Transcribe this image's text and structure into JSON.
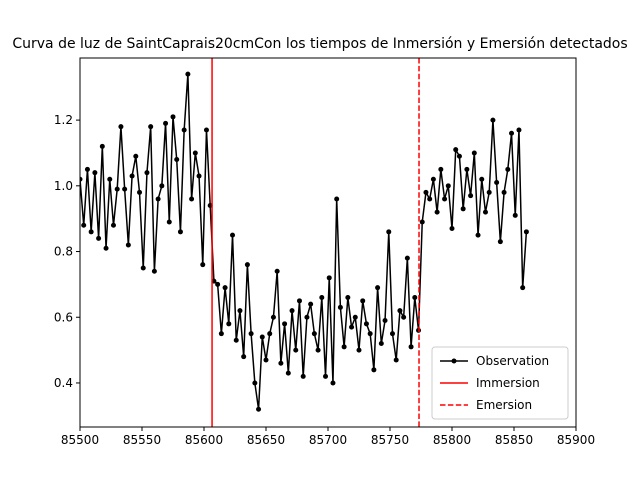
{
  "chart_data": {
    "type": "line",
    "title": "Curva de luz de SaintCaprais20cmCon los tiempos de Inmersión y Emersión detectados",
    "x": [
      85500,
      85503,
      85506,
      85509,
      85512,
      85515,
      85518,
      85521,
      85524,
      85527,
      85530,
      85533,
      85536,
      85539,
      85542,
      85545,
      85548,
      85551,
      85554,
      85557,
      85560,
      85563,
      85566,
      85569,
      85572,
      85575,
      85578,
      85581,
      85584,
      85587,
      85590,
      85593,
      85596,
      85599,
      85602,
      85605,
      85608,
      85611,
      85614,
      85617,
      85620,
      85623,
      85626,
      85629,
      85632,
      85635,
      85638,
      85641,
      85644,
      85647,
      85650,
      85653,
      85656,
      85659,
      85662,
      85665,
      85668,
      85671,
      85674,
      85677,
      85680,
      85683,
      85686,
      85689,
      85692,
      85695,
      85698,
      85701,
      85704,
      85707,
      85710,
      85713,
      85716,
      85719,
      85722,
      85725,
      85728,
      85731,
      85734,
      85737,
      85740,
      85743,
      85746,
      85749,
      85752,
      85755,
      85758,
      85761,
      85764,
      85767,
      85770,
      85773,
      85776,
      85779,
      85782,
      85785,
      85788,
      85791,
      85794,
      85797,
      85800,
      85803,
      85806,
      85809,
      85812,
      85815,
      85818,
      85821,
      85824,
      85827,
      85830,
      85833,
      85836,
      85839,
      85842,
      85845,
      85848,
      85851,
      85854,
      85857,
      85860
    ],
    "series": [
      {
        "name": "Observation",
        "color": "#000000",
        "values": [
          1.02,
          0.88,
          1.05,
          0.86,
          1.04,
          0.84,
          1.12,
          0.81,
          1.02,
          0.88,
          0.99,
          1.18,
          0.99,
          0.82,
          1.03,
          1.09,
          0.98,
          0.75,
          1.04,
          1.18,
          0.74,
          0.96,
          1.0,
          1.19,
          0.89,
          1.21,
          1.08,
          0.86,
          1.17,
          1.34,
          0.96,
          1.1,
          1.03,
          0.76,
          1.17,
          0.94,
          0.71,
          0.7,
          0.55,
          0.69,
          0.58,
          0.85,
          0.53,
          0.62,
          0.48,
          0.76,
          0.55,
          0.4,
          0.32,
          0.54,
          0.47,
          0.55,
          0.6,
          0.74,
          0.46,
          0.58,
          0.43,
          0.62,
          0.5,
          0.65,
          0.42,
          0.6,
          0.64,
          0.55,
          0.5,
          0.66,
          0.42,
          0.72,
          0.4,
          0.96,
          0.63,
          0.51,
          0.66,
          0.57,
          0.6,
          0.5,
          0.65,
          0.58,
          0.55,
          0.44,
          0.69,
          0.52,
          0.59,
          0.86,
          0.55,
          0.47,
          0.62,
          0.6,
          0.78,
          0.51,
          0.66,
          0.56,
          0.89,
          0.98,
          0.96,
          1.02,
          0.92,
          1.05,
          0.96,
          1.0,
          0.87,
          1.11,
          1.09,
          0.93,
          1.05,
          0.97,
          1.1,
          0.85,
          1.02,
          0.92,
          0.98,
          1.2,
          1.01,
          0.83,
          0.98,
          1.05,
          1.16,
          0.91,
          1.17,
          0.69,
          0.86
        ]
      }
    ],
    "vlines": [
      {
        "name": "Immersion",
        "x": 85606.5,
        "color": "#ff0000",
        "dashed": false
      },
      {
        "name": "Emersion",
        "x": 85773.4,
        "color": "#ff0000",
        "dashed": true
      }
    ],
    "xlim": [
      85500,
      85900
    ],
    "xticks": [
      85500,
      85550,
      85600,
      85650,
      85700,
      85750,
      85800,
      85850,
      85900
    ],
    "ylim": [
      0.266,
      1.389
    ],
    "yticks": [
      0.4,
      0.6,
      0.8,
      {
        "value": 1,
        "label": "1.0"
      },
      1.2
    ],
    "legend": "lower right"
  }
}
